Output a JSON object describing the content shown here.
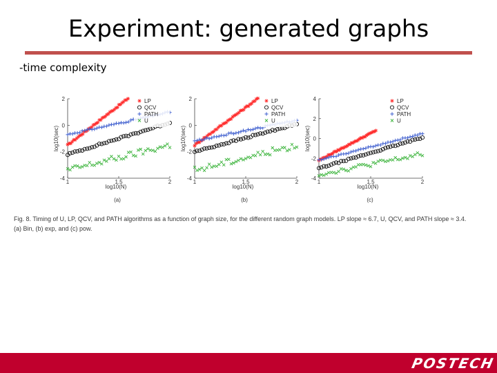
{
  "slide": {
    "title": "Experiment: generated graphs",
    "bullet": "-time complexity",
    "caption": "Fig. 8. Timing of U, LP, QCV, and PATH algorithms as a function of graph size, for the different random graph models. LP slope ≈ 6.7, U, QCV, and PATH slope ≈ 3.4. (a) Bin, (b) exp, and (c) pow.",
    "logo_text": "POSTECH"
  },
  "colors": {
    "rule": "#c0504d",
    "footer": "#c0002d",
    "LP": "#ff2a2a",
    "QCV": "#111111",
    "PATH": "#3f5fcf",
    "U": "#3cb43c"
  },
  "chart_data": [
    {
      "type": "scatter",
      "panel_label": "(a)",
      "xlabel": "log10(N)",
      "ylabel": "log10(sec)",
      "xlim": [
        1,
        2
      ],
      "ylim": [
        -4,
        2
      ],
      "xticks": [
        "1",
        "1.5",
        "2"
      ],
      "yticks": [
        "2",
        "0",
        "-2",
        "-4"
      ],
      "legend": [
        "LP",
        "QCV",
        "PATH",
        "U"
      ],
      "legend_position": "top-right",
      "series": [
        {
          "name": "LP",
          "marker": "asterisk",
          "x": [
            1.0,
            1.62
          ],
          "y": [
            -1.5,
            2.2
          ]
        },
        {
          "name": "QCV",
          "marker": "circle",
          "x": [
            1.0,
            2.0
          ],
          "y": [
            -2.2,
            0.2
          ]
        },
        {
          "name": "PATH",
          "marker": "plus",
          "x": [
            1.0,
            2.0
          ],
          "y": [
            -0.7,
            1.0
          ]
        },
        {
          "name": "U",
          "marker": "cross",
          "x": [
            1.0,
            2.0
          ],
          "y": [
            -3.4,
            -1.5
          ]
        }
      ]
    },
    {
      "type": "scatter",
      "panel_label": "(b)",
      "xlabel": "log10(N)",
      "ylabel": "log10(sec)",
      "xlim": [
        1,
        2
      ],
      "ylim": [
        -4,
        2
      ],
      "xticks": [
        "1",
        "1.5",
        "2"
      ],
      "yticks": [
        "2",
        "0",
        "-2",
        "-4"
      ],
      "legend": [
        "LP",
        "QCV",
        "PATH",
        "U"
      ],
      "legend_position": "top-right",
      "series": [
        {
          "name": "LP",
          "marker": "asterisk",
          "x": [
            1.0,
            1.65
          ],
          "y": [
            -1.5,
            2.2
          ]
        },
        {
          "name": "QCV",
          "marker": "circle",
          "x": [
            1.0,
            2.0
          ],
          "y": [
            -2.0,
            0.1
          ]
        },
        {
          "name": "PATH",
          "marker": "plus",
          "x": [
            1.0,
            2.0
          ],
          "y": [
            -1.2,
            0.4
          ]
        },
        {
          "name": "U",
          "marker": "cross",
          "x": [
            1.0,
            2.0
          ],
          "y": [
            -3.4,
            -1.5
          ]
        }
      ]
    },
    {
      "type": "scatter",
      "panel_label": "(c)",
      "xlabel": "log10(N)",
      "ylabel": "log10(sec)",
      "xlim": [
        1,
        2
      ],
      "ylim": [
        -4,
        4
      ],
      "xticks": [
        "1",
        "1.5",
        "2"
      ],
      "yticks": [
        "4",
        "2",
        "0",
        "-2",
        "-4"
      ],
      "legend": [
        "LP",
        "QCV",
        "PATH",
        "U"
      ],
      "legend_position": "top-right",
      "series": [
        {
          "name": "LP",
          "marker": "asterisk",
          "x": [
            1.0,
            1.55
          ],
          "y": [
            -2.2,
            0.8
          ]
        },
        {
          "name": "QCV",
          "marker": "circle",
          "x": [
            1.0,
            2.0
          ],
          "y": [
            -3.0,
            0.1
          ]
        },
        {
          "name": "PATH",
          "marker": "plus",
          "x": [
            1.0,
            2.0
          ],
          "y": [
            -2.2,
            0.5
          ]
        },
        {
          "name": "U",
          "marker": "cross",
          "x": [
            1.0,
            2.0
          ],
          "y": [
            -3.6,
            -1.6
          ]
        }
      ]
    }
  ]
}
